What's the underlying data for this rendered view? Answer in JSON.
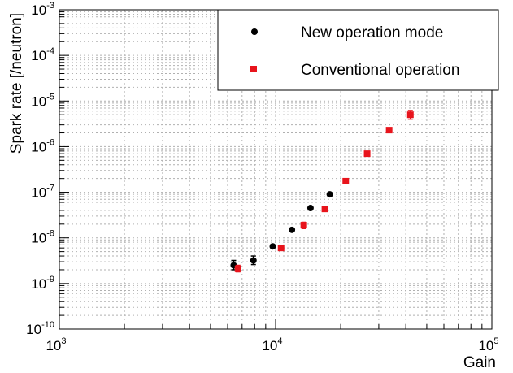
{
  "chart_data": {
    "type": "scatter",
    "title": "",
    "xlabel": "Gain",
    "ylabel": "Spark rate [/neutron]",
    "x_scale": "log",
    "y_scale": "log",
    "xlim": [
      1000,
      100000
    ],
    "ylim": [
      1e-10,
      0.001
    ],
    "grid": true,
    "legend_position": "top-right",
    "x_ticks": [
      {
        "base": "10",
        "exp": "3"
      },
      {
        "base": "10",
        "exp": "4"
      },
      {
        "base": "10",
        "exp": "5"
      }
    ],
    "y_ticks": [
      {
        "base": "10",
        "exp": "-10"
      },
      {
        "base": "10",
        "exp": "-9"
      },
      {
        "base": "10",
        "exp": "-8"
      },
      {
        "base": "10",
        "exp": "-7"
      },
      {
        "base": "10",
        "exp": "-6"
      },
      {
        "base": "10",
        "exp": "-5"
      },
      {
        "base": "10",
        "exp": "-4"
      },
      {
        "base": "10",
        "exp": "-3"
      }
    ],
    "series": [
      {
        "name": "New operation mode",
        "color": "#000000",
        "marker": "circle",
        "points": [
          {
            "x": 6400,
            "y": 2.5e-09,
            "ylo": 2e-09,
            "yhi": 3.2e-09
          },
          {
            "x": 7900,
            "y": 3.2e-09,
            "ylo": 2.6e-09,
            "yhi": 4e-09
          },
          {
            "x": 9700,
            "y": 6.5e-09,
            "ylo": 6e-09,
            "yhi": 7.1e-09
          },
          {
            "x": 11900,
            "y": 1.5e-08,
            "ylo": 1.45e-08,
            "yhi": 1.55e-08
          },
          {
            "x": 14500,
            "y": 4.5e-08,
            "ylo": 4.3e-08,
            "yhi": 4.7e-08
          },
          {
            "x": 17800,
            "y": 9e-08,
            "ylo": 8.7e-08,
            "yhi": 9.3e-08
          }
        ]
      },
      {
        "name": "Conventional operation",
        "color": "#e8141c",
        "marker": "square",
        "points": [
          {
            "x": 6700,
            "y": 2.1e-09,
            "ylo": 1.8e-09,
            "yhi": 2.5e-09
          },
          {
            "x": 10600,
            "y": 6e-09,
            "ylo": 5.7e-09,
            "yhi": 6.3e-09
          },
          {
            "x": 13500,
            "y": 1.9e-08,
            "ylo": 1.6e-08,
            "yhi": 2.2e-08
          },
          {
            "x": 16900,
            "y": 4.3e-08,
            "ylo": 4e-08,
            "yhi": 4.6e-08
          },
          {
            "x": 21100,
            "y": 1.75e-07,
            "ylo": 1.68e-07,
            "yhi": 1.82e-07
          },
          {
            "x": 26500,
            "y": 7e-07,
            "ylo": 6.7e-07,
            "yhi": 7.3e-07
          },
          {
            "x": 33500,
            "y": 2.3e-06,
            "ylo": 2.2e-06,
            "yhi": 2.4e-06
          },
          {
            "x": 42000,
            "y": 5e-06,
            "ylo": 4e-06,
            "yhi": 6.2e-06
          }
        ]
      }
    ]
  }
}
